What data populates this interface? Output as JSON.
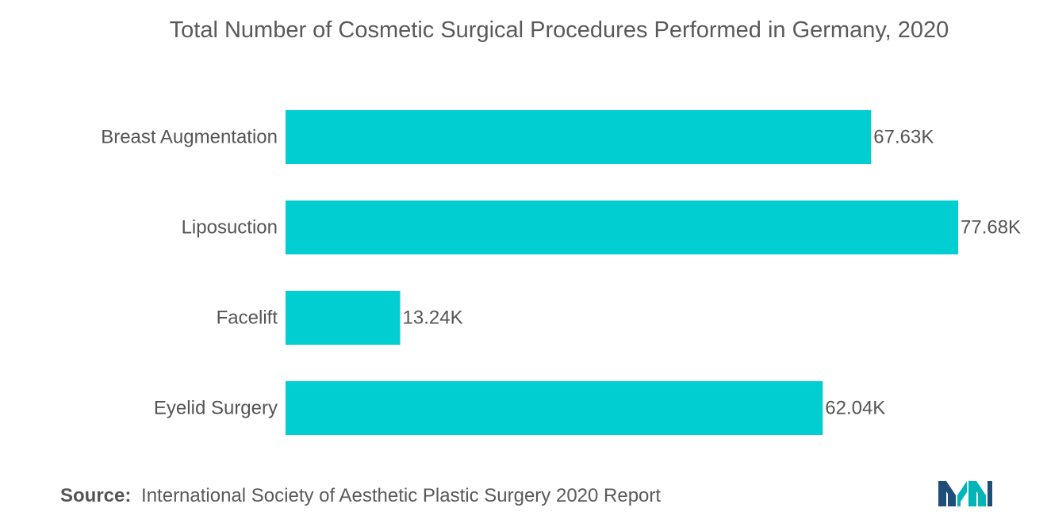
{
  "chart_data": {
    "type": "bar",
    "orientation": "horizontal",
    "title": "Total Number of Cosmetic Surgical Procedures Performed in Germany, 2020",
    "categories": [
      "Breast Augmentation",
      "Liposuction",
      "Facelift",
      "Eyelid Surgery"
    ],
    "values": [
      67.63,
      77.68,
      13.24,
      62.04
    ],
    "value_labels": [
      "67.63K",
      "77.68K",
      "13.24K",
      "62.04K"
    ],
    "unit": "K",
    "xlim": [
      0,
      77.68
    ],
    "grid": false,
    "legend": "none",
    "bar_color": "#00CED1"
  },
  "footer": {
    "source_label": "Source:",
    "source_text": "International Society of Aesthetic Plastic Surgery 2020 Report"
  },
  "logo": {
    "icon": "mordor-intelligence-logo",
    "colors": [
      "#1F4E79",
      "#00B5B8"
    ]
  }
}
